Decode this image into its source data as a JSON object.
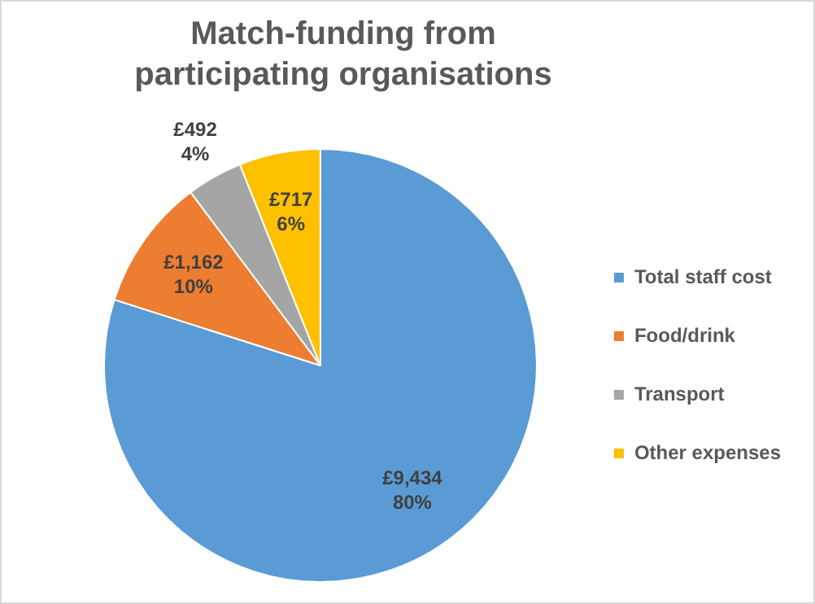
{
  "chart_data": {
    "type": "pie",
    "title": "Match-funding from participating organisations",
    "categories": [
      "Total staff cost",
      "Food/drink",
      "Transport",
      "Other expenses"
    ],
    "values": [
      9434,
      1162,
      492,
      717
    ],
    "colors": [
      "#5b9bd5",
      "#ed7d31",
      "#a5a5a5",
      "#ffc000"
    ],
    "value_labels": [
      "£9,434\n80%",
      "£1,162\n10%",
      "£492\n4%",
      "£717\n6%"
    ],
    "legend": "right"
  }
}
